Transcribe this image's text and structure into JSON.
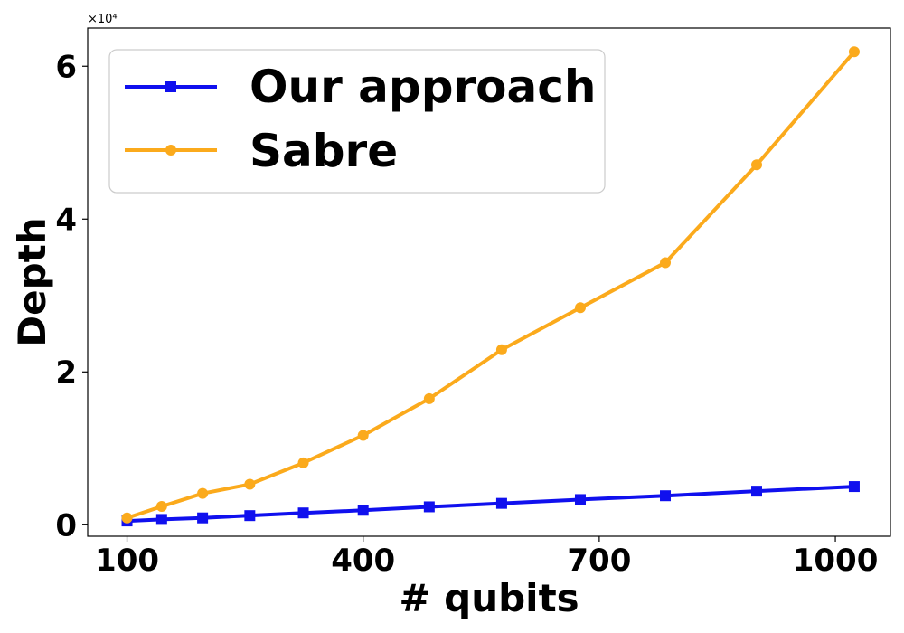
{
  "chart_data": {
    "type": "line",
    "title": "",
    "xlabel": "# qubits",
    "ylabel": "Depth",
    "y_offset_label": "×10⁴",
    "y_scale_factor": 10000,
    "xlim": [
      50,
      1070
    ],
    "ylim": [
      -0.15,
      6.5
    ],
    "x_ticks": [
      100,
      400,
      700,
      1000
    ],
    "y_ticks": [
      0,
      2,
      4,
      6
    ],
    "grid": false,
    "legend_position": "top-left",
    "x": [
      100,
      144,
      196,
      256,
      324,
      400,
      484,
      576,
      676,
      784,
      900,
      1024
    ],
    "series": [
      {
        "name": "Our approach",
        "color": "#1010ee",
        "marker": "square",
        "values": [
          0.05,
          0.07,
          0.09,
          0.12,
          0.155,
          0.19,
          0.235,
          0.28,
          0.33,
          0.38,
          0.44,
          0.5
        ]
      },
      {
        "name": "Sabre",
        "color": "#fbaa1c",
        "marker": "circle",
        "values": [
          0.09,
          0.24,
          0.41,
          0.53,
          0.81,
          1.17,
          1.65,
          2.29,
          2.84,
          3.43,
          4.71,
          6.19
        ]
      }
    ]
  }
}
